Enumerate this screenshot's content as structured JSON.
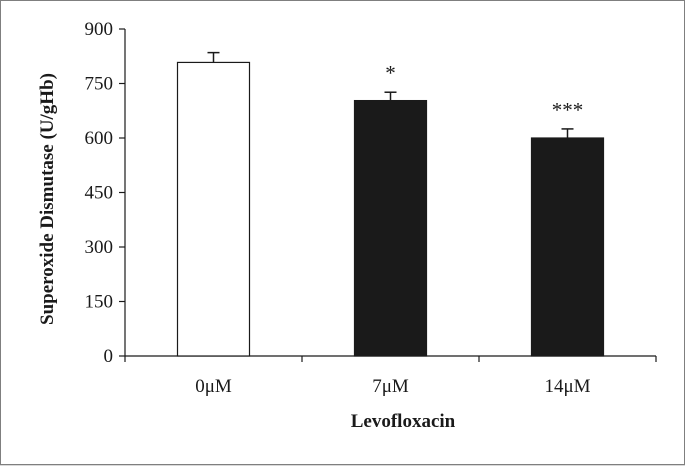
{
  "chart_data": {
    "type": "bar",
    "categories": [
      "0μM",
      "7μM",
      "14μM"
    ],
    "values": [
      808,
      703,
      600
    ],
    "errors": [
      27,
      23,
      25
    ],
    "annotations": [
      "",
      "*",
      "***"
    ],
    "fill_colors": [
      "#ffffff",
      "#1a1a1a",
      "#1a1a1a"
    ],
    "xlabel": "Levofloxacin",
    "ylabel": "Superoxide Dismutase (U/gHb)",
    "ylim": [
      0,
      900
    ],
    "yticks": [
      0,
      150,
      300,
      450,
      600,
      750,
      900
    ],
    "grid": false,
    "legend": "none"
  }
}
